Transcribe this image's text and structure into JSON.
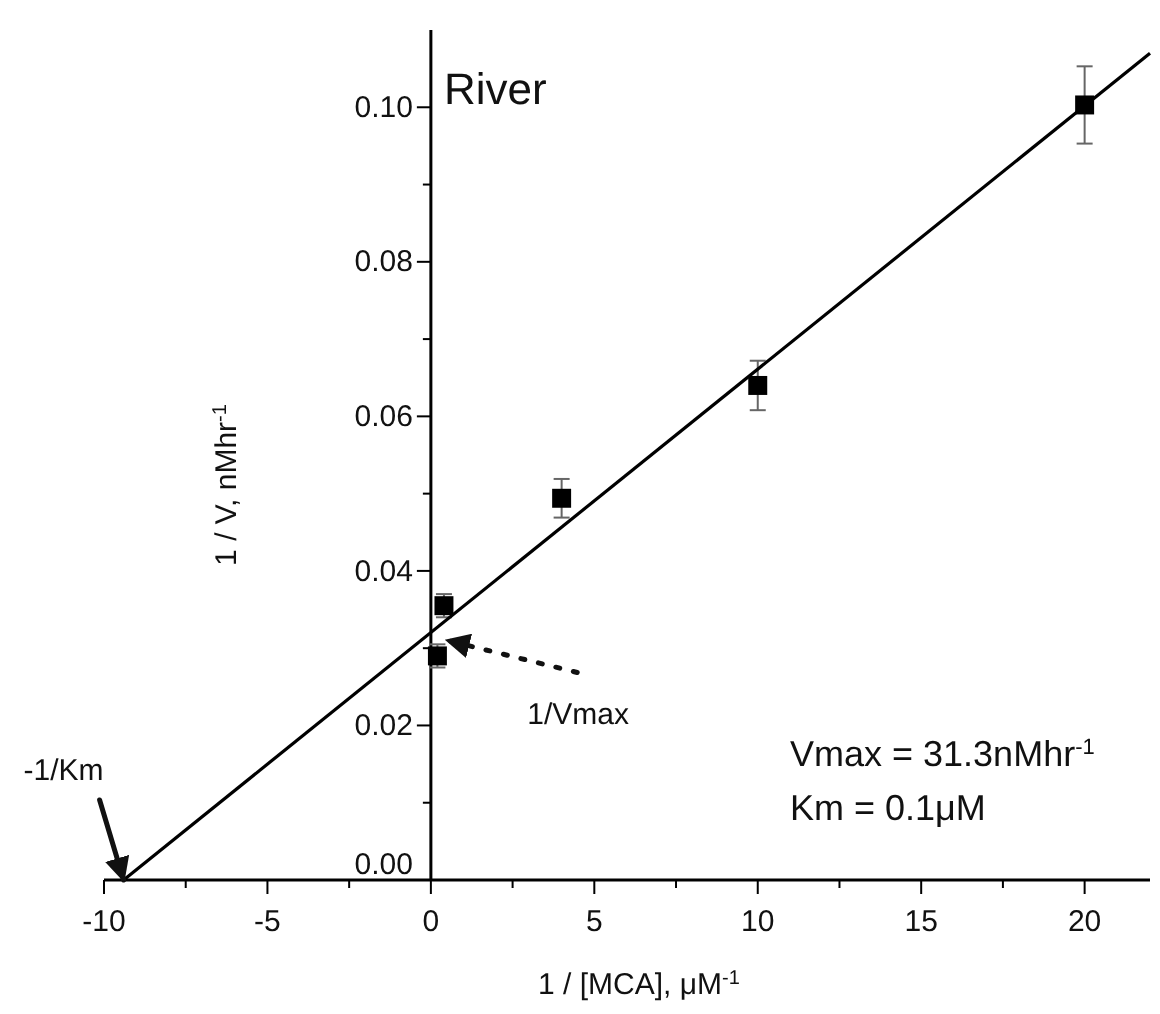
{
  "chart_data": {
    "type": "scatter",
    "xlabel": "1 / [MCA], μM$^{-1}$",
    "ylabel": "1 / V, nMhr$^{-1}$",
    "xlim": [
      -10,
      22
    ],
    "ylim": [
      0,
      0.11
    ],
    "xticks": [
      -10,
      {
        "value": -7.5,
        "label": null
      },
      -5,
      {
        "value": -2.5,
        "label": null
      },
      0,
      {
        "value": 2.5,
        "label": null
      },
      5,
      {
        "value": 7.5,
        "label": null
      },
      10,
      {
        "value": 12.5,
        "label": null
      },
      15,
      {
        "value": 17.5,
        "label": null
      },
      20
    ],
    "yticks": [
      {
        "value": 0,
        "label": "0.00"
      },
      {
        "value": 0.01,
        "label": null
      },
      {
        "value": 0.02,
        "label": "0.02"
      },
      {
        "value": 0.03,
        "label": null
      },
      {
        "value": 0.04,
        "label": "0.04"
      },
      {
        "value": 0.05,
        "label": null
      },
      {
        "value": 0.06,
        "label": "0.06"
      },
      {
        "value": 0.07,
        "label": null
      },
      {
        "value": 0.08,
        "label": "0.08"
      },
      {
        "value": 0.09,
        "label": null
      },
      {
        "value": 0.1,
        "label": "0.10"
      }
    ],
    "grid": false,
    "series": [
      {
        "marker": "square",
        "color": "#000000",
        "x": [
          0.2,
          0.4,
          4,
          10,
          20
        ],
        "values": [
          0.029,
          0.0355,
          0.0494,
          0.064,
          0.1003
        ],
        "errors": [
          0.0015,
          0.0015,
          0.0025,
          0.0032,
          0.005
        ]
      },
      {
        "type": "line",
        "color": "#000000",
        "x": [
          -9.4,
          22
        ],
        "values": [
          0,
          0.107
        ]
      }
    ],
    "annotations": [
      "River",
      {
        "text": "-1/Km",
        "x": -9.4,
        "y": 0
      },
      {
        "text": "1/Vmax",
        "x": 0.5,
        "y": 0.031
      },
      "Vmax = 31.3nMhr$^{-1}$",
      "Km = 0.1μM"
    ]
  }
}
